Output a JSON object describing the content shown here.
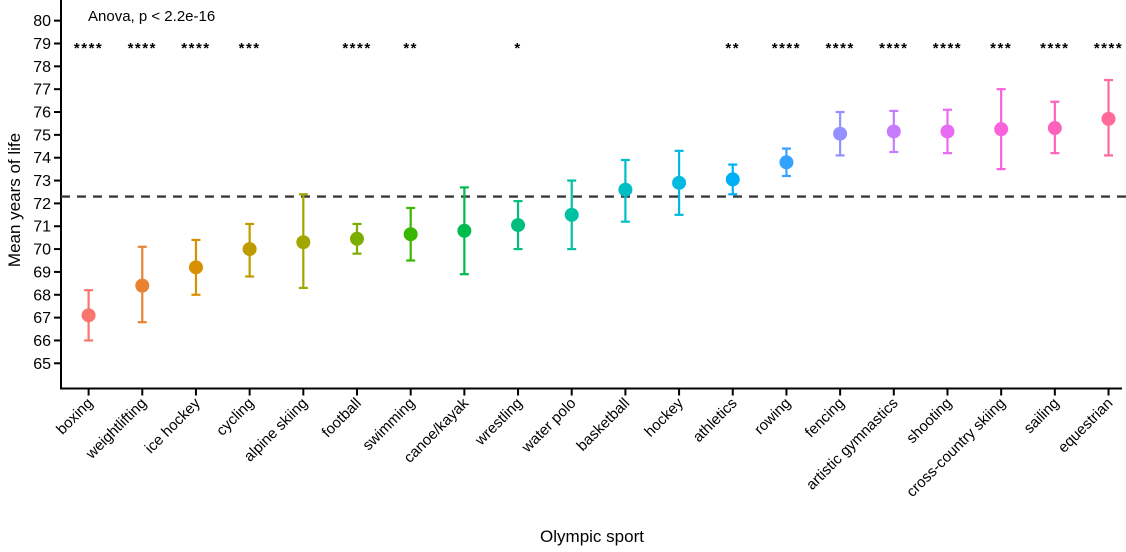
{
  "chart_data": {
    "type": "scatter",
    "subtype": "mean-dot-with-error-bars",
    "annotation": "Anova, p < 2.2e-16",
    "xlabel": "Olympic sport",
    "ylabel": "Mean years of life",
    "ylim": [
      64.4,
      80.6
    ],
    "yticks": [
      65,
      66,
      67,
      68,
      69,
      70,
      71,
      72,
      73,
      74,
      75,
      76,
      77,
      78,
      79,
      80
    ],
    "grid": false,
    "legend": "none",
    "reference_line": {
      "value": 72.3,
      "style": "dashed"
    },
    "points": [
      {
        "sport": "boxing",
        "mean": 67.1,
        "ci_low": 66.0,
        "ci_high": 68.2,
        "significance": "****",
        "color": "#F8766D"
      },
      {
        "sport": "weightlifting",
        "mean": 68.4,
        "ci_low": 66.8,
        "ci_high": 70.1,
        "significance": "****",
        "color": "#EA8331"
      },
      {
        "sport": "ice hockey",
        "mean": 69.2,
        "ci_low": 68.0,
        "ci_high": 70.4,
        "significance": "****",
        "color": "#D89000"
      },
      {
        "sport": "cycling",
        "mean": 70.0,
        "ci_low": 68.8,
        "ci_high": 71.1,
        "significance": "***",
        "color": "#C09B00"
      },
      {
        "sport": "alpine skiing",
        "mean": 70.3,
        "ci_low": 68.3,
        "ci_high": 72.4,
        "significance": "",
        "color": "#A3A500"
      },
      {
        "sport": "football",
        "mean": 70.45,
        "ci_low": 69.8,
        "ci_high": 71.1,
        "significance": "****",
        "color": "#7CAE00"
      },
      {
        "sport": "swimming",
        "mean": 70.65,
        "ci_low": 69.5,
        "ci_high": 71.8,
        "significance": "**",
        "color": "#39B600"
      },
      {
        "sport": "canoe/kayak",
        "mean": 70.8,
        "ci_low": 68.9,
        "ci_high": 72.7,
        "significance": "",
        "color": "#00BB4E"
      },
      {
        "sport": "wrestling",
        "mean": 71.05,
        "ci_low": 70.0,
        "ci_high": 72.1,
        "significance": "*",
        "color": "#00BF7D"
      },
      {
        "sport": "water polo",
        "mean": 71.5,
        "ci_low": 70.0,
        "ci_high": 73.0,
        "significance": "",
        "color": "#00C1A3"
      },
      {
        "sport": "basketball",
        "mean": 72.6,
        "ci_low": 71.2,
        "ci_high": 73.9,
        "significance": "",
        "color": "#00BFC4"
      },
      {
        "sport": "hockey",
        "mean": 72.9,
        "ci_low": 71.5,
        "ci_high": 74.3,
        "significance": "",
        "color": "#00BAE0"
      },
      {
        "sport": "athletics",
        "mean": 73.05,
        "ci_low": 72.4,
        "ci_high": 73.7,
        "significance": "**",
        "color": "#00B0F6"
      },
      {
        "sport": "rowing",
        "mean": 73.8,
        "ci_low": 73.2,
        "ci_high": 74.4,
        "significance": "****",
        "color": "#35A2FF"
      },
      {
        "sport": "fencing",
        "mean": 75.05,
        "ci_low": 74.1,
        "ci_high": 76.0,
        "significance": "****",
        "color": "#9590FF"
      },
      {
        "sport": "artistic gymnastics",
        "mean": 75.15,
        "ci_low": 74.25,
        "ci_high": 76.05,
        "significance": "****",
        "color": "#C77CFF"
      },
      {
        "sport": "shooting",
        "mean": 75.15,
        "ci_low": 74.2,
        "ci_high": 76.1,
        "significance": "****",
        "color": "#E76BF3"
      },
      {
        "sport": "cross-country skiing",
        "mean": 75.25,
        "ci_low": 73.5,
        "ci_high": 77.0,
        "significance": "***",
        "color": "#FA62DB"
      },
      {
        "sport": "sailing",
        "mean": 75.3,
        "ci_low": 74.2,
        "ci_high": 76.45,
        "significance": "****",
        "color": "#FF62BC"
      },
      {
        "sport": "equestrian",
        "mean": 75.7,
        "ci_low": 74.1,
        "ci_high": 77.4,
        "significance": "****",
        "color": "#FF6A98"
      }
    ]
  },
  "colors": {
    "axis": "#000000",
    "text": "#000000",
    "background": "#ffffff",
    "reference_line": "#3a3a3a"
  }
}
